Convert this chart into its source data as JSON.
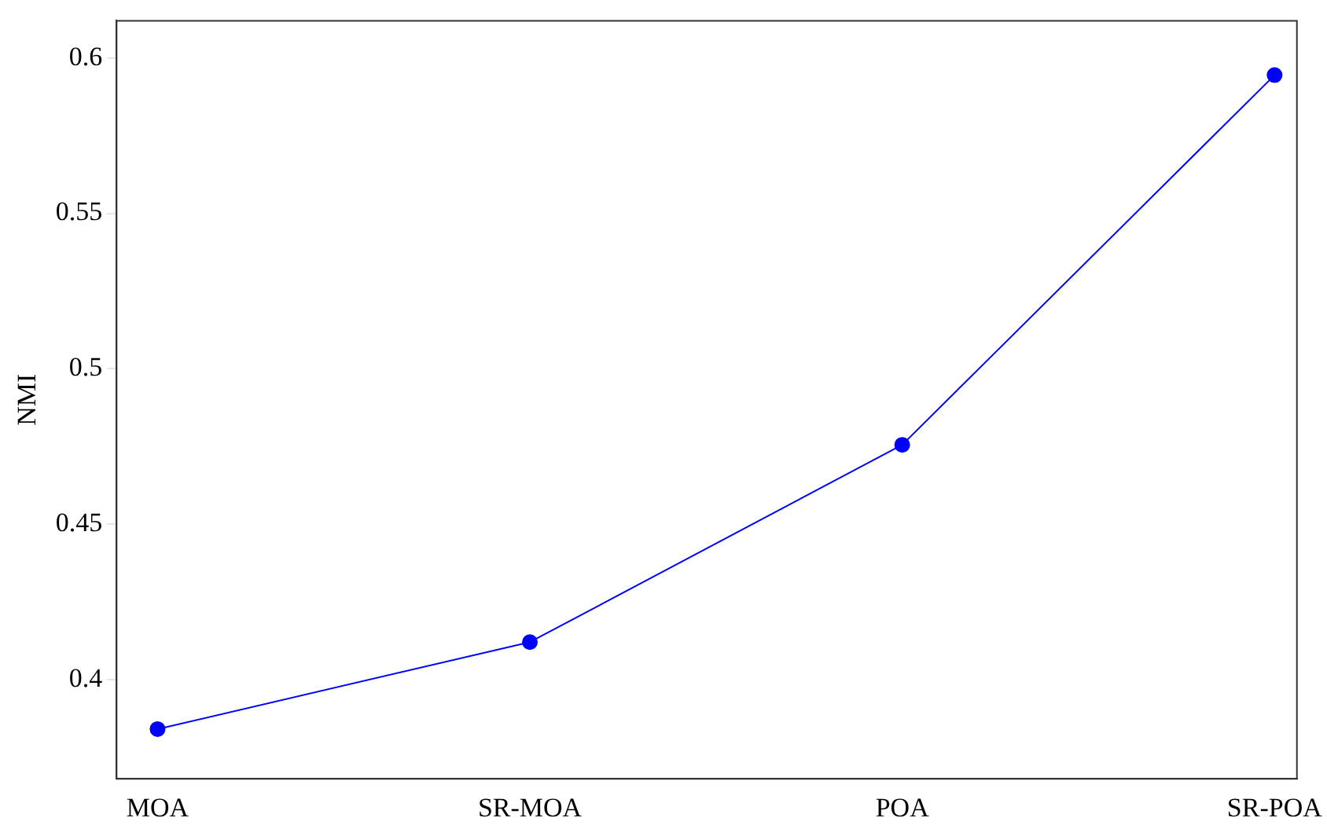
{
  "chart_data": {
    "type": "line",
    "ylabel": "NMI",
    "categories": [
      "MOA",
      "SR-MOA",
      "POA",
      "SR-POA"
    ],
    "series": [
      {
        "color": "#0000ff",
        "values": [
          0.384,
          0.412,
          0.4755,
          0.5945
        ]
      }
    ],
    "ylim": [
      0.368,
      0.612
    ],
    "yticks": [
      {
        "value": 0.4,
        "label": "0.4"
      },
      {
        "value": 0.45,
        "label": "0.45"
      },
      {
        "value": 0.5,
        "label": "0.5"
      },
      {
        "value": 0.55,
        "label": "0.55"
      },
      {
        "value": 0.6,
        "label": "0.6"
      }
    ],
    "grid": false,
    "legend": false,
    "marker": "circle",
    "line_style": "solid"
  }
}
